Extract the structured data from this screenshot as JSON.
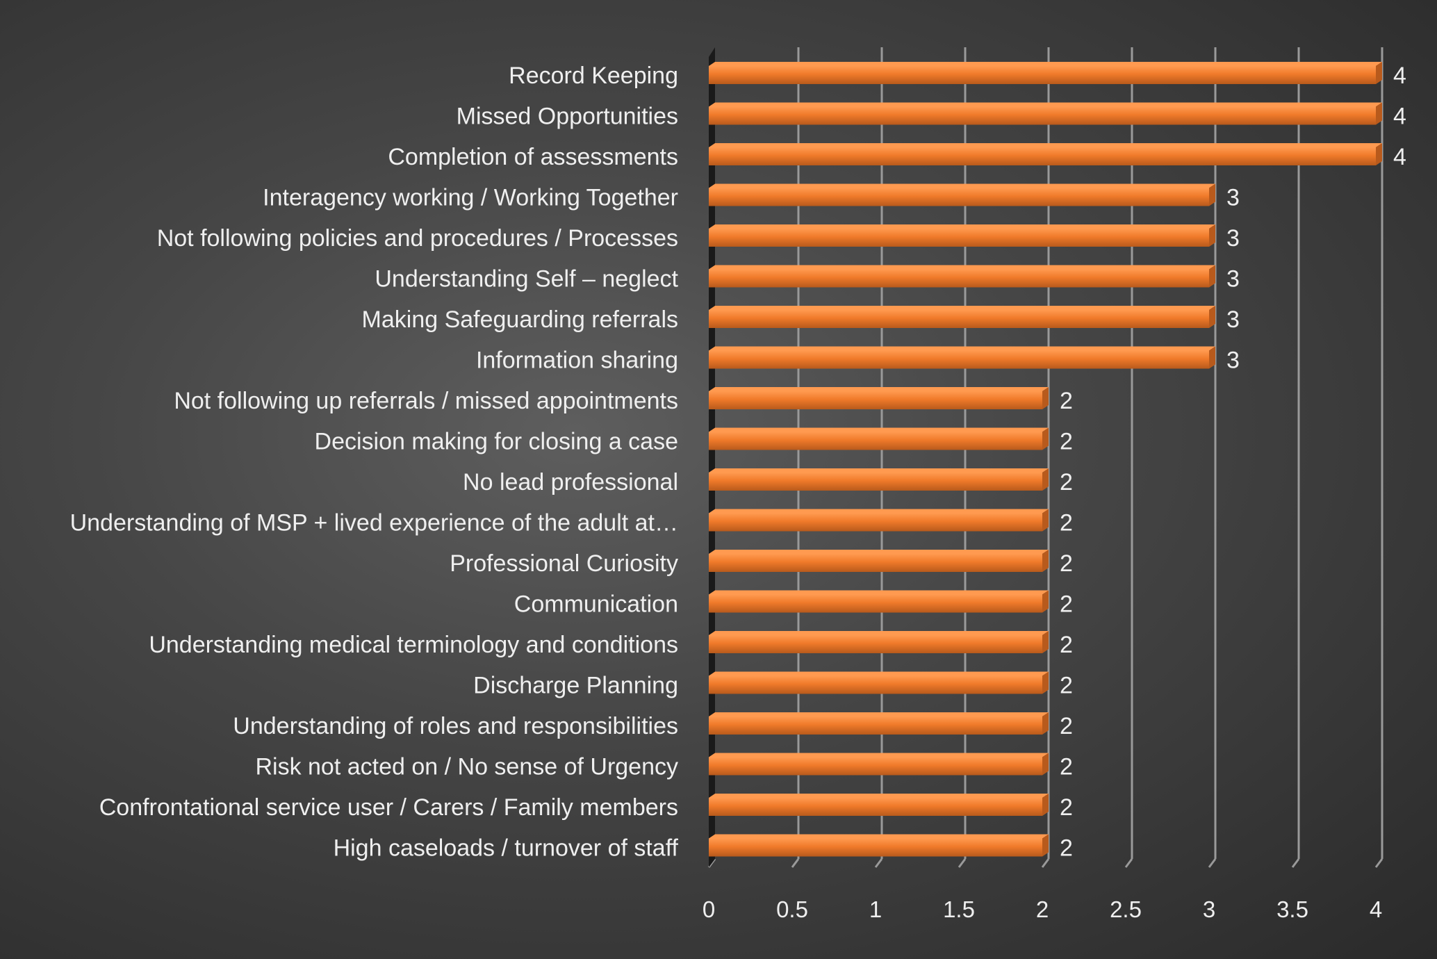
{
  "chart_data": {
    "type": "bar",
    "orientation": "horizontal",
    "title": "",
    "xlabel": "",
    "ylabel": "",
    "categories": [
      "Record Keeping",
      "Missed Opportunities",
      "Completion of assessments",
      "Interagency working / Working Together",
      "Not following policies and procedures  / Processes",
      "Understanding Self – neglect",
      "Making Safeguarding referrals",
      "Information sharing",
      "Not following up referrals / missed appointments",
      "Decision making for closing a case",
      "No lead professional",
      "Understanding of MSP + lived experience of the adult at…",
      "Professional Curiosity",
      "Communication",
      "Understanding medical terminology and conditions",
      "Discharge Planning",
      "Understanding of roles and responsibilities",
      "Risk not acted on /  No sense of Urgency",
      "Confrontational service user / Carers / Family members",
      "High caseloads / turnover of staff"
    ],
    "values": [
      4,
      4,
      4,
      3,
      3,
      3,
      3,
      3,
      2,
      2,
      2,
      2,
      2,
      2,
      2,
      2,
      2,
      2,
      2,
      2
    ],
    "xlim": [
      0,
      4
    ],
    "xticks": [
      "0",
      "0.5",
      "1",
      "1.5",
      "2",
      "2.5",
      "3",
      "3.5",
      "4"
    ],
    "data_labels": true,
    "grid": true,
    "legend": "none",
    "colors": {
      "bar": "#f07a2a",
      "bar_highlight": "#ff9a50",
      "bar_shadow": "#b85a1c",
      "text": "#efefef",
      "gridline": "#9a9a9a",
      "axis": "#1a1a1a"
    }
  }
}
